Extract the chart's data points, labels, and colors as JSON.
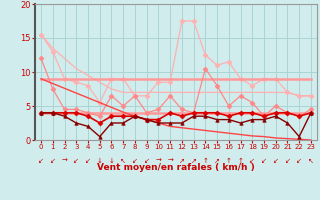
{
  "x": [
    0,
    1,
    2,
    3,
    4,
    5,
    6,
    7,
    8,
    9,
    10,
    11,
    12,
    13,
    14,
    15,
    16,
    17,
    18,
    19,
    20,
    21,
    22,
    23
  ],
  "series": [
    {
      "name": "rafales_high_light",
      "color": "#ffb0b0",
      "linewidth": 0.9,
      "marker": "D",
      "markersize": 2.5,
      "values": [
        15.5,
        13.0,
        9.0,
        8.5,
        8.0,
        5.5,
        9.0,
        9.0,
        6.5,
        6.5,
        8.5,
        8.5,
        17.5,
        17.5,
        12.5,
        11.0,
        11.5,
        9.0,
        8.0,
        9.0,
        9.0,
        7.0,
        6.5,
        6.5
      ]
    },
    {
      "name": "diagonal_light",
      "color": "#ffb0b0",
      "linewidth": 0.9,
      "marker": null,
      "markersize": 0,
      "values": [
        15.5,
        13.5,
        12.0,
        10.5,
        9.5,
        8.5,
        7.5,
        7.0,
        7.0,
        7.0,
        7.0,
        7.0,
        7.0,
        7.0,
        7.0,
        7.0,
        7.0,
        7.0,
        7.0,
        7.0,
        7.0,
        7.0,
        6.5,
        6.5
      ]
    },
    {
      "name": "band_top",
      "color": "#ff9999",
      "linewidth": 1.8,
      "marker": null,
      "markersize": 0,
      "values": [
        9.0,
        9.0,
        9.0,
        9.0,
        9.0,
        9.0,
        9.0,
        9.0,
        9.0,
        9.0,
        9.0,
        9.0,
        9.0,
        9.0,
        9.0,
        9.0,
        9.0,
        9.0,
        9.0,
        9.0,
        9.0,
        9.0,
        9.0,
        9.0
      ]
    },
    {
      "name": "band_bot",
      "color": "#ff9999",
      "linewidth": 1.8,
      "marker": null,
      "markersize": 0,
      "values": [
        4.0,
        4.0,
        4.0,
        4.0,
        4.0,
        4.0,
        4.0,
        4.0,
        4.0,
        4.0,
        4.0,
        4.0,
        4.0,
        4.0,
        4.0,
        4.0,
        4.0,
        4.0,
        4.0,
        4.0,
        4.0,
        4.0,
        4.0,
        4.0
      ]
    },
    {
      "name": "rafales_pink",
      "color": "#ff8888",
      "linewidth": 0.9,
      "marker": "D",
      "markersize": 2.5,
      "values": [
        12.0,
        7.5,
        4.5,
        4.5,
        4.0,
        3.5,
        6.5,
        5.0,
        6.5,
        4.0,
        4.5,
        6.5,
        4.5,
        4.0,
        10.5,
        8.0,
        5.0,
        6.5,
        5.5,
        3.5,
        5.0,
        4.0,
        3.5,
        4.5
      ]
    },
    {
      "name": "linear_decline",
      "color": "#ff4444",
      "linewidth": 1.0,
      "marker": null,
      "markersize": 0,
      "values": [
        9.0,
        8.3,
        7.6,
        6.9,
        6.2,
        5.5,
        4.8,
        4.1,
        3.5,
        3.0,
        2.5,
        2.0,
        1.8,
        1.6,
        1.4,
        1.2,
        1.0,
        0.8,
        0.6,
        0.5,
        0.3,
        0.2,
        0.1,
        0.0
      ]
    },
    {
      "name": "vent_moyen_red",
      "color": "#dd0000",
      "linewidth": 1.2,
      "marker": "D",
      "markersize": 2.5,
      "values": [
        4.0,
        4.0,
        4.0,
        4.0,
        3.5,
        2.5,
        3.5,
        3.5,
        3.5,
        3.0,
        3.0,
        4.0,
        3.5,
        4.0,
        4.0,
        4.0,
        3.5,
        4.0,
        4.0,
        3.5,
        4.0,
        4.0,
        3.5,
        4.0
      ]
    },
    {
      "name": "vent_min_dark",
      "color": "#880000",
      "linewidth": 1.0,
      "marker": "^",
      "markersize": 2.5,
      "values": [
        4.0,
        4.0,
        3.5,
        2.5,
        2.0,
        0.5,
        2.5,
        2.5,
        3.5,
        3.0,
        2.5,
        2.5,
        2.5,
        3.5,
        3.5,
        3.0,
        3.0,
        2.5,
        3.0,
        3.0,
        3.5,
        2.5,
        0.5,
        4.0
      ]
    }
  ],
  "arrows": [
    "↙",
    "↙",
    "→",
    "↙",
    "↙",
    "↓",
    "↓",
    "↖",
    "↙",
    "↙",
    "→",
    "→",
    "↗",
    "↗",
    "↑",
    "↗",
    "↑",
    "↑",
    "↙",
    "↙",
    "↙",
    "↙",
    "↙",
    "↖"
  ],
  "xlim": [
    -0.5,
    23.5
  ],
  "ylim": [
    0,
    20
  ],
  "yticks": [
    0,
    5,
    10,
    15,
    20
  ],
  "xticks": [
    0,
    1,
    2,
    3,
    4,
    5,
    6,
    7,
    8,
    9,
    10,
    11,
    12,
    13,
    14,
    15,
    16,
    17,
    18,
    19,
    20,
    21,
    22,
    23
  ],
  "xlabel": "Vent moyen/en rafales ( km/h )",
  "background_color": "#d0ecec",
  "grid_color": "#aad4d4",
  "label_color": "#cc0000",
  "left_spine_color": "#555555"
}
